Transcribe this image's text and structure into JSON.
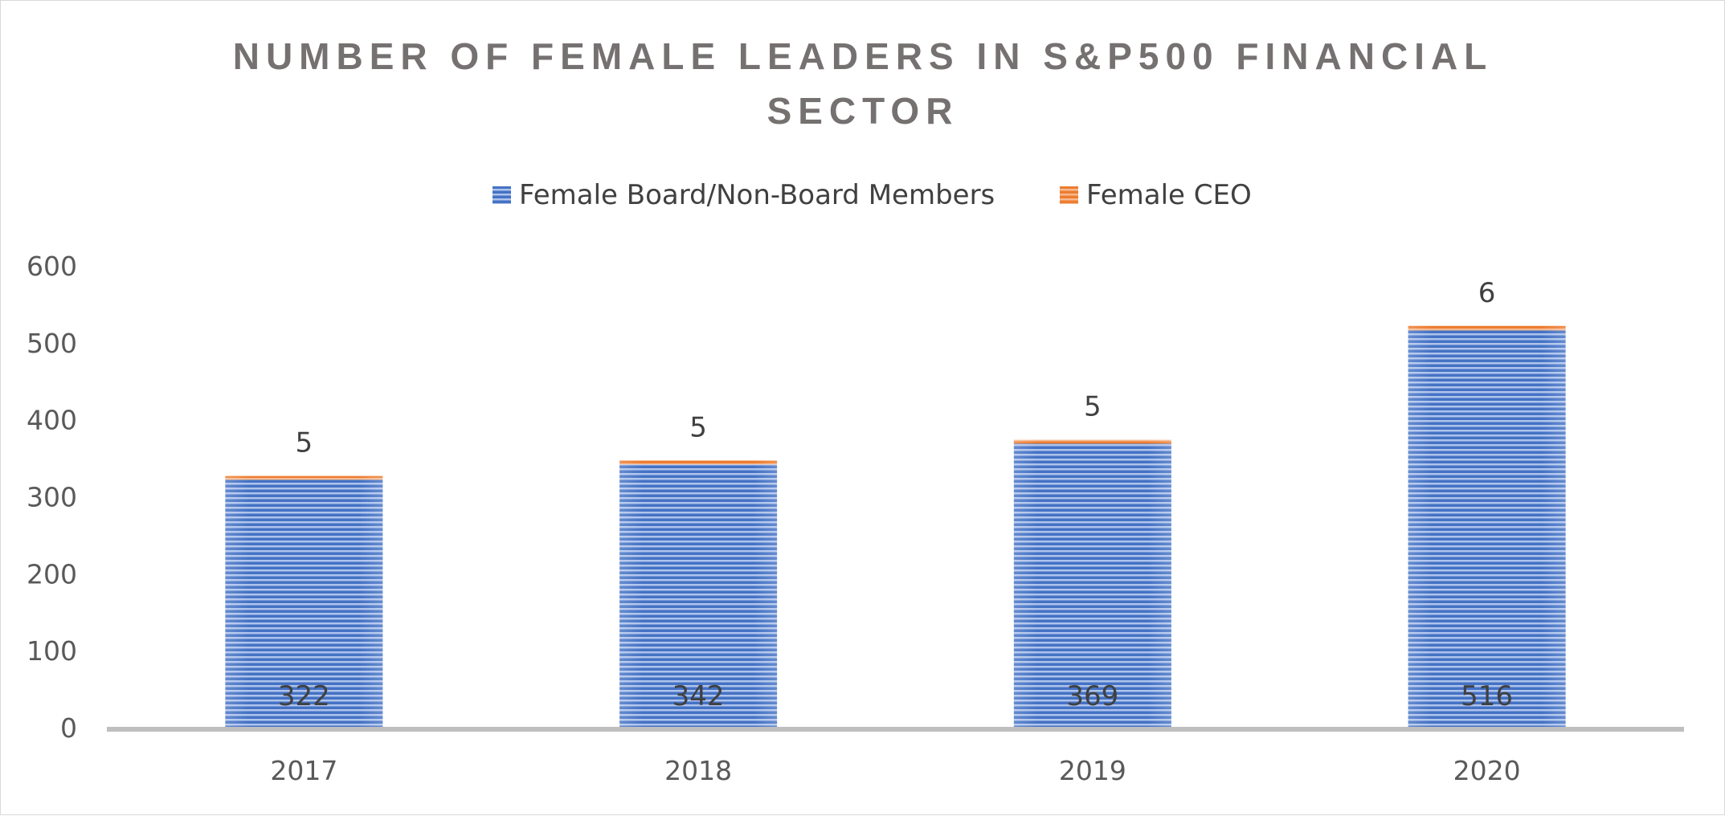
{
  "chart_data": {
    "type": "bar",
    "stacked": true,
    "title_lines": [
      "NUMBER OF FEMALE LEADERS IN S&P500 FINANCIAL",
      "SECTOR"
    ],
    "xlabel": "",
    "ylabel": "",
    "categories": [
      "2017",
      "2018",
      "2019",
      "2020"
    ],
    "series": [
      {
        "name": "Female Board/Non-Board Members",
        "values": [
          322,
          342,
          369,
          516
        ],
        "color": "#4472C4"
      },
      {
        "name": "Female CEO",
        "values": [
          5,
          5,
          5,
          6
        ],
        "color": "#ED7D31"
      }
    ],
    "ylim": [
      0,
      600
    ],
    "yticks": [
      "0",
      "100",
      "200",
      "300",
      "400",
      "500",
      "600"
    ],
    "grid": false,
    "legend_position": "top"
  }
}
